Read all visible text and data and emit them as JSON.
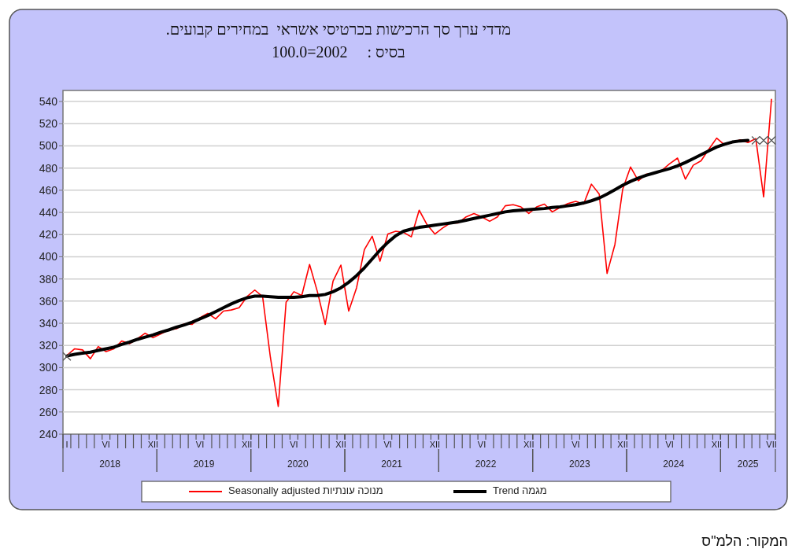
{
  "chart_data": {
    "type": "line",
    "title": "מדדי ערך סך הרכישות בכרטיסי אשראי  במחירים קבועים.",
    "subtitle": "בסיס :     2002=100.0",
    "categories": [
      "I",
      null,
      null,
      null,
      null,
      "VI",
      null,
      null,
      null,
      null,
      null,
      "XII",
      null,
      null,
      null,
      null,
      null,
      "VI",
      null,
      null,
      null,
      null,
      null,
      "XII",
      null,
      null,
      null,
      null,
      null,
      "VI",
      null,
      null,
      null,
      null,
      null,
      "XII",
      null,
      null,
      null,
      null,
      null,
      "VI",
      null,
      null,
      null,
      null,
      null,
      "XII",
      null,
      null,
      null,
      null,
      null,
      "VI",
      null,
      null,
      null,
      null,
      null,
      "XII",
      null,
      null,
      null,
      null,
      null,
      "VI",
      null,
      null,
      null,
      null,
      null,
      "XII",
      null,
      null,
      null,
      null,
      null,
      "VI",
      null,
      null,
      null,
      null,
      null,
      "XII",
      null,
      null,
      null,
      null,
      null,
      null,
      "VII"
    ],
    "series": [
      {
        "name": "מנוכה עונתיות Seasonally adjusted",
        "color": "#ff0000",
        "values": [
          311,
          317,
          316,
          308,
          319,
          314.5,
          317,
          324,
          321.5,
          326,
          331,
          327,
          330.5,
          334,
          335,
          339.5,
          339,
          345,
          349,
          344,
          351,
          352,
          354,
          364,
          370,
          364,
          309,
          265,
          359,
          368.5,
          365,
          393,
          368.5,
          339,
          378,
          392.5,
          351,
          372,
          406.5,
          418.5,
          396,
          420.5,
          423,
          422,
          418,
          442,
          429,
          420.5,
          426,
          430.5,
          430.5,
          436,
          439,
          436,
          432,
          436,
          446,
          447,
          445,
          439,
          445,
          447.5,
          440.5,
          444.5,
          448,
          450,
          447.5,
          465.5,
          456.5,
          385,
          411,
          461,
          481,
          468.5,
          474.5,
          475.5,
          478,
          484,
          489,
          470,
          482.5,
          486.5,
          497,
          507,
          501,
          503,
          505.5,
          503,
          506.5,
          454,
          542
        ]
      },
      {
        "name": "מגמה Trend",
        "color": "#000000",
        "values": [
          310.5,
          312,
          313,
          314,
          315.5,
          317,
          318.5,
          321,
          323,
          325.5,
          327.5,
          329.5,
          332,
          334,
          336.5,
          338.5,
          341,
          344,
          347,
          350.5,
          354,
          357.5,
          360.5,
          363,
          364.5,
          364.5,
          364,
          363.5,
          363.5,
          363.5,
          364,
          365,
          365,
          366,
          368.5,
          372,
          377,
          383,
          390,
          398,
          406,
          413,
          419,
          423,
          425,
          426.5,
          427.5,
          428.5,
          429.5,
          430.5,
          431.5,
          433,
          434.5,
          436,
          437.5,
          439,
          440.5,
          441.5,
          442,
          442.5,
          443,
          443.5,
          444.5,
          445,
          446,
          447,
          448.5,
          450.5,
          453,
          456.5,
          460.5,
          464.5,
          468,
          471,
          473.5,
          475.5,
          477.5,
          479.5,
          482,
          485,
          488.5,
          492,
          495.5,
          499,
          501.5,
          503.5,
          504.5,
          505,
          null,
          null,
          null
        ]
      },
      {
        "type": "scatter",
        "marker": "cross",
        "color": "#555555",
        "values": [
          310,
          null,
          null,
          null,
          null,
          null,
          null,
          null,
          null,
          null,
          null,
          null,
          null,
          null,
          null,
          null,
          null,
          null,
          null,
          null,
          null,
          null,
          null,
          null,
          null,
          null,
          null,
          null,
          null,
          null,
          null,
          null,
          null,
          null,
          null,
          null,
          null,
          null,
          null,
          null,
          null,
          null,
          null,
          null,
          null,
          null,
          null,
          null,
          null,
          null,
          null,
          null,
          null,
          null,
          null,
          null,
          null,
          null,
          null,
          null,
          null,
          null,
          null,
          null,
          null,
          null,
          null,
          null,
          null,
          null,
          null,
          null,
          null,
          null,
          null,
          null,
          null,
          null,
          null,
          null,
          null,
          null,
          null,
          null,
          null,
          null,
          null,
          null,
          505,
          505,
          505
        ]
      }
    ],
    "ylim": [
      240,
      550
    ],
    "yticks": [
      240,
      260,
      280,
      300,
      320,
      340,
      360,
      380,
      400,
      420,
      440,
      460,
      480,
      500,
      520,
      540
    ],
    "grid": "y",
    "legend": "bottom",
    "annotations": [
      "המקור: הלמ\"ס",
      "2018",
      "2019",
      "2020",
      "2021",
      "2022",
      "2023",
      "2024",
      "2025"
    ]
  }
}
